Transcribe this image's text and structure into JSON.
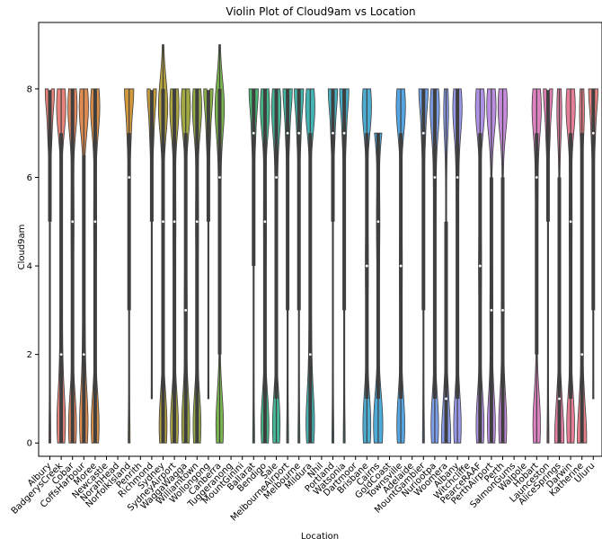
{
  "chart_data": {
    "type": "violin",
    "title": "Violin Plot of Cloud9am vs Location",
    "xlabel": "Location",
    "ylabel": "Cloud9am",
    "ylim": [
      -0.3,
      9.5
    ],
    "yticks": [
      0,
      2,
      4,
      6,
      8
    ],
    "grid": false,
    "legend": "none",
    "categories": [
      {
        "name": "Albury",
        "color": "#e8837a",
        "q": [
          5,
          7,
          8
        ],
        "median": 8,
        "range": [
          0,
          8
        ],
        "shape": "top-heavy"
      },
      {
        "name": "BadgerysCreek",
        "color": "#e8837a",
        "q": [
          0,
          2,
          7
        ],
        "median": 2,
        "range": [
          0,
          8
        ],
        "shape": "bimodal"
      },
      {
        "name": "Cobar",
        "color": "#e1885f",
        "q": [
          0,
          5,
          8
        ],
        "median": 5,
        "range": [
          0,
          8
        ],
        "shape": "bimodal"
      },
      {
        "name": "CoffsHarbour",
        "color": "#dd8b50",
        "q": [
          0,
          2,
          6.5
        ],
        "median": 2,
        "range": [
          0,
          8
        ],
        "shape": "bimodal"
      },
      {
        "name": "Moree",
        "color": "#d98f45",
        "q": [
          0,
          5,
          8
        ],
        "median": 5,
        "range": [
          0,
          8
        ],
        "shape": "bimodal"
      },
      {
        "name": "Newcastle",
        "color": "",
        "q": [],
        "median": null,
        "range": [],
        "shape": "empty"
      },
      {
        "name": "NorahHead",
        "color": "",
        "q": [],
        "median": null,
        "range": [],
        "shape": "empty"
      },
      {
        "name": "NorfolkIsland",
        "color": "#d1973b",
        "q": [
          3,
          6,
          7
        ],
        "median": 6,
        "range": [
          0,
          8
        ],
        "shape": "top-heavy"
      },
      {
        "name": "Penrith",
        "color": "",
        "q": [],
        "median": null,
        "range": [],
        "shape": "empty"
      },
      {
        "name": "Richmond",
        "color": "#c29d3a",
        "q": [
          5,
          8,
          8
        ],
        "median": 8,
        "range": [
          1,
          8
        ],
        "shape": "top-heavy"
      },
      {
        "name": "Sydney",
        "color": "#b6a23c",
        "q": [
          0,
          5,
          8
        ],
        "median": 5,
        "range": [
          0,
          9
        ],
        "shape": "bimodal"
      },
      {
        "name": "SydneyAirport",
        "color": "#aba63f",
        "q": [
          0,
          5,
          8
        ],
        "median": 5,
        "range": [
          0,
          8
        ],
        "shape": "bimodal"
      },
      {
        "name": "WaggaWagga",
        "color": "#a0a942",
        "q": [
          0,
          3,
          7
        ],
        "median": 3,
        "range": [
          0,
          8
        ],
        "shape": "bimodal"
      },
      {
        "name": "Williamtown",
        "color": "#95ad45",
        "q": [
          0,
          5,
          8
        ],
        "median": 5,
        "range": [
          0,
          8
        ],
        "shape": "bimodal"
      },
      {
        "name": "Wollongong",
        "color": "#8bb049",
        "q": [
          5,
          8,
          8
        ],
        "median": 8,
        "range": [
          1,
          8
        ],
        "shape": "top-heavy"
      },
      {
        "name": "Canberra",
        "color": "#7bb44e",
        "q": [
          2,
          6,
          8
        ],
        "median": 6,
        "range": [
          0,
          9
        ],
        "shape": "bimodal"
      },
      {
        "name": "Tuggeranong",
        "color": "",
        "q": [],
        "median": null,
        "range": [],
        "shape": "empty"
      },
      {
        "name": "MountGinini",
        "color": "",
        "q": [],
        "median": null,
        "range": [],
        "shape": "empty"
      },
      {
        "name": "Ballarat",
        "color": "#48b873",
        "q": [
          4,
          7,
          8
        ],
        "median": 7,
        "range": [
          0,
          8
        ],
        "shape": "top-heavy"
      },
      {
        "name": "Bendigo",
        "color": "#45b889",
        "q": [
          0,
          5,
          8
        ],
        "median": 5,
        "range": [
          0,
          8
        ],
        "shape": "bimodal"
      },
      {
        "name": "Sale",
        "color": "#44b798",
        "q": [
          1,
          6,
          8
        ],
        "median": 6,
        "range": [
          0,
          8
        ],
        "shape": "bimodal"
      },
      {
        "name": "MelbourneAirport",
        "color": "#43b6a2",
        "q": [
          3,
          7,
          8
        ],
        "median": 7,
        "range": [
          0,
          8
        ],
        "shape": "top-heavy"
      },
      {
        "name": "Melbourne",
        "color": "#43b5ab",
        "q": [
          3,
          7,
          8
        ],
        "median": 7,
        "range": [
          0,
          8
        ],
        "shape": "top-heavy"
      },
      {
        "name": "Mildura",
        "color": "#44b3b3",
        "q": [
          0,
          2,
          7
        ],
        "median": 2,
        "range": [
          0,
          8
        ],
        "shape": "bimodal"
      },
      {
        "name": "Nhil",
        "color": "",
        "q": [],
        "median": null,
        "range": [],
        "shape": "empty"
      },
      {
        "name": "Portland",
        "color": "#46b1bf",
        "q": [
          5,
          7,
          8
        ],
        "median": 7,
        "range": [
          0,
          8
        ],
        "shape": "top-heavy"
      },
      {
        "name": "Watsonia",
        "color": "#48afc6",
        "q": [
          3,
          7,
          8
        ],
        "median": 7,
        "range": [
          0,
          8
        ],
        "shape": "top-heavy"
      },
      {
        "name": "Dartmoor",
        "color": "",
        "q": [],
        "median": null,
        "range": [],
        "shape": "empty"
      },
      {
        "name": "Brisbane",
        "color": "#4cacd0",
        "q": [
          1,
          4,
          7
        ],
        "median": 4,
        "range": [
          0,
          8
        ],
        "shape": "bimodal"
      },
      {
        "name": "Cairns",
        "color": "#4eaad6",
        "q": [
          1,
          5,
          7
        ],
        "median": 5,
        "range": [
          0,
          7
        ],
        "shape": "bimodal"
      },
      {
        "name": "GoldCoast",
        "color": "",
        "q": [],
        "median": null,
        "range": [],
        "shape": "empty"
      },
      {
        "name": "Townsville",
        "color": "#54a5e1",
        "q": [
          1,
          4,
          7
        ],
        "median": 4,
        "range": [
          0,
          8
        ],
        "shape": "bimodal"
      },
      {
        "name": "Adelaide",
        "color": "",
        "q": [],
        "median": null,
        "range": [],
        "shape": "empty"
      },
      {
        "name": "MountGambier",
        "color": "#70a0e6",
        "q": [
          3,
          7,
          8
        ],
        "median": 7,
        "range": [
          0,
          8
        ],
        "shape": "top-heavy"
      },
      {
        "name": "Nuriootpa",
        "color": "#7d9ee8",
        "q": [
          1,
          6,
          8
        ],
        "median": 6,
        "range": [
          0,
          8
        ],
        "shape": "bimodal"
      },
      {
        "name": "Woomera",
        "color": "#899be9",
        "q": [
          0,
          1,
          5
        ],
        "median": 1,
        "range": [
          0,
          8
        ],
        "shape": "bottom-heavy"
      },
      {
        "name": "Albany",
        "color": "#9798ea",
        "q": [
          1,
          6,
          8
        ],
        "median": 6,
        "range": [
          0,
          8
        ],
        "shape": "bimodal"
      },
      {
        "name": "Witchcliffe",
        "color": "",
        "q": [],
        "median": null,
        "range": [],
        "shape": "empty"
      },
      {
        "name": "PearceRAAF",
        "color": "#af91e6",
        "q": [
          0,
          4,
          7
        ],
        "median": 4,
        "range": [
          0,
          8
        ],
        "shape": "bimodal"
      },
      {
        "name": "PerthAirport",
        "color": "#bb8de1",
        "q": [
          0,
          3,
          6
        ],
        "median": 3,
        "range": [
          0,
          8
        ],
        "shape": "bimodal"
      },
      {
        "name": "Perth",
        "color": "#c68ada",
        "q": [
          0,
          3,
          6
        ],
        "median": 3,
        "range": [
          0,
          8
        ],
        "shape": "bimodal"
      },
      {
        "name": "SalmonGums",
        "color": "",
        "q": [],
        "median": null,
        "range": [],
        "shape": "empty"
      },
      {
        "name": "Walpole",
        "color": "",
        "q": [],
        "median": null,
        "range": [],
        "shape": "empty"
      },
      {
        "name": "Hobart",
        "color": "#de82c1",
        "q": [
          2,
          6,
          7
        ],
        "median": 6,
        "range": [
          0,
          8
        ],
        "shape": "bimodal"
      },
      {
        "name": "Launceston",
        "color": "#e27fb4",
        "q": [
          5,
          8,
          8
        ],
        "median": 8,
        "range": [
          0,
          8
        ],
        "shape": "top-heavy"
      },
      {
        "name": "AliceSprings",
        "color": "#e47ea5",
        "q": [
          0,
          1,
          6
        ],
        "median": 1,
        "range": [
          0,
          8
        ],
        "shape": "bottom-heavy"
      },
      {
        "name": "Darwin",
        "color": "#e67e96",
        "q": [
          1,
          5,
          7
        ],
        "median": 5,
        "range": [
          0,
          8
        ],
        "shape": "bimodal"
      },
      {
        "name": "Katherine",
        "color": "#e77f88",
        "q": [
          0,
          2,
          7
        ],
        "median": 2,
        "range": [
          0,
          8
        ],
        "shape": "bottom-heavy"
      },
      {
        "name": "Uluru",
        "color": "#e8817e",
        "q": [
          3,
          7,
          8
        ],
        "median": 7,
        "range": [
          1,
          8
        ],
        "shape": "top-heavy"
      }
    ]
  }
}
